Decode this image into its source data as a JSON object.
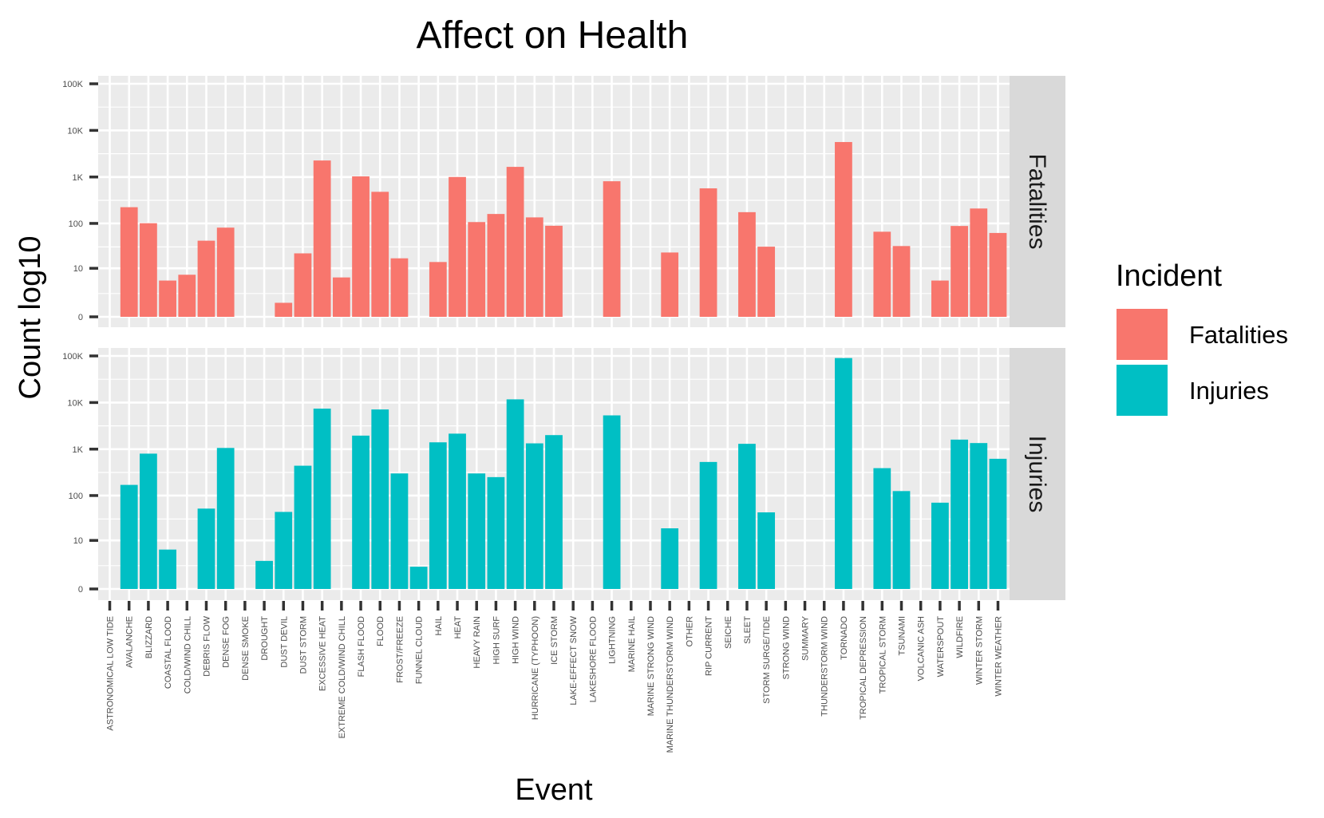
{
  "chart_data": {
    "type": "bar",
    "title": "Affect on Health",
    "xlabel": "Event",
    "ylabel": "Count log10",
    "y_scale": "log10(count+1)",
    "y_ticks": [
      {
        "value": 0,
        "label": "0"
      },
      {
        "value": 10,
        "label": "10"
      },
      {
        "value": 100,
        "label": "100"
      },
      {
        "value": 1000,
        "label": "1K"
      },
      {
        "value": 10000,
        "label": "10K"
      },
      {
        "value": 100000,
        "label": "100K"
      }
    ],
    "ylim": [
      0,
      100000
    ],
    "grid": true,
    "legend": {
      "title": "Incident",
      "placement": "right",
      "entries": [
        {
          "name": "Fatalities",
          "color": "#F8766D"
        },
        {
          "name": "Injuries",
          "color": "#00BFC4"
        }
      ]
    },
    "categories": [
      "ASTRONOMICAL LOW TIDE",
      "AVALANCHE",
      "BLIZZARD",
      "COASTAL FLOOD",
      "COLD/WIND CHILL",
      "DEBRIS FLOW",
      "DENSE FOG",
      "DENSE SMOKE",
      "DROUGHT",
      "DUST DEVIL",
      "DUST STORM",
      "EXCESSIVE HEAT",
      "EXTREME COLD/WIND CHILL",
      "FLASH FLOOD",
      "FLOOD",
      "FROST/FREEZE",
      "FUNNEL CLOUD",
      "HAIL",
      "HEAT",
      "HEAVY RAIN",
      "HIGH SURF",
      "HIGH WIND",
      "HURRICANE (TYPHOON)",
      "ICE STORM",
      "LAKE-EFFECT SNOW",
      "LAKESHORE FLOOD",
      "LIGHTNING",
      "MARINE HAIL",
      "MARINE STRONG WIND",
      "MARINE THUNDERSTORM WIND",
      "OTHER",
      "RIP CURRENT",
      "SEICHE",
      "SLEET",
      "STORM SURGE/TIDE",
      "STRONG WIND",
      "SUMMARY",
      "THUNDERSTORM WIND",
      "TORNADO",
      "TROPICAL DEPRESSION",
      "TROPICAL STORM",
      "TSUNAMI",
      "VOLCANIC ASH",
      "WATERSPOUT",
      "WILDFIRE",
      "WINTER STORM",
      "WINTER WEATHER"
    ],
    "series": [
      {
        "name": "Fatalities",
        "color": "#F8766D",
        "values": [
          0,
          224,
          101,
          5,
          7,
          42,
          81,
          0,
          0,
          1,
          22,
          2260,
          6,
          1030,
          480,
          17,
          0,
          14,
          1000,
          107,
          160,
          1650,
          135,
          89,
          0,
          0,
          810,
          0,
          0,
          23,
          0,
          570,
          0,
          175,
          31,
          0,
          0,
          0,
          5630,
          0,
          66,
          32,
          0,
          5,
          88,
          210,
          62
        ]
      },
      {
        "name": "Injuries",
        "color": "#00BFC4",
        "values": [
          0,
          170,
          800,
          6,
          0,
          52,
          1060,
          0,
          3,
          44,
          440,
          7400,
          0,
          1950,
          7100,
          300,
          2,
          1400,
          2150,
          300,
          250,
          11700,
          1330,
          2000,
          0,
          0,
          5300,
          0,
          0,
          19,
          0,
          530,
          0,
          1300,
          43,
          0,
          0,
          0,
          90000,
          0,
          390,
          125,
          0,
          70,
          1600,
          1350,
          620
        ]
      }
    ]
  }
}
